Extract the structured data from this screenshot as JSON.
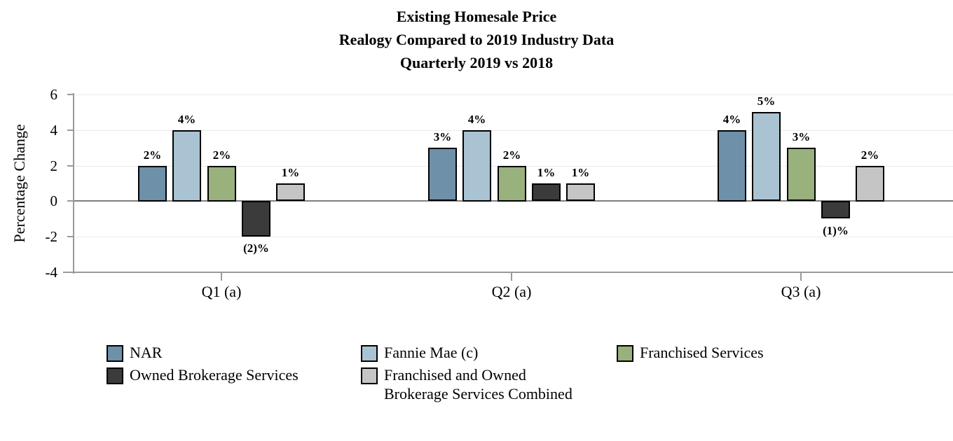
{
  "chart_data": {
    "type": "bar",
    "title_lines": [
      "Existing Homesale Price",
      "Realogy Compared to 2019 Industry Data",
      "Quarterly 2019 vs 2018"
    ],
    "ylabel": "Percentage Change",
    "xlabel": "",
    "categories": [
      "Q1 (a)",
      "Q2 (a)",
      "Q3 (a)"
    ],
    "y_ticks": [
      6,
      4,
      2,
      0,
      -2,
      -4
    ],
    "ylim": [
      -4,
      6
    ],
    "grid": "horizontal",
    "legend_position": "bottom",
    "series": [
      {
        "name": "NAR",
        "color": "#6E90A9",
        "values": [
          2,
          3,
          4
        ],
        "labels": [
          "2%",
          "3%",
          "4%"
        ]
      },
      {
        "name": "Fannie Mae (c)",
        "color": "#AAC3D3",
        "values": [
          4,
          4,
          5
        ],
        "labels": [
          "4%",
          "4%",
          "5%"
        ]
      },
      {
        "name": "Franchised Services",
        "color": "#99B17D",
        "values": [
          2,
          2,
          3
        ],
        "labels": [
          "2%",
          "2%",
          "3%"
        ]
      },
      {
        "name": "Owned Brokerage Services",
        "color": "#3B3B3B",
        "values": [
          -2,
          1,
          -1
        ],
        "labels": [
          "(2)%",
          "1%",
          "(1)%"
        ]
      },
      {
        "name": "Franchised and Owned Brokerage Services Combined",
        "color": "#C5C5C5",
        "values": [
          1,
          1,
          2
        ],
        "labels": [
          "1%",
          "1%",
          "2%"
        ]
      }
    ],
    "legend_columns": [
      [
        {
          "series_index": 0,
          "lines": [
            "NAR"
          ]
        },
        {
          "series_index": 3,
          "lines": [
            "Owned Brokerage Services"
          ]
        }
      ],
      [
        {
          "series_index": 1,
          "lines": [
            "Fannie Mae (c)"
          ]
        },
        {
          "series_index": 4,
          "lines": [
            "Franchised and Owned",
            "Brokerage Services Combined"
          ]
        }
      ],
      [
        {
          "series_index": 2,
          "lines": [
            "Franchised Services"
          ]
        }
      ]
    ]
  },
  "colors": {
    "axis": "#9A9A9A",
    "zero_line": "#7F7F7F",
    "gridline": "#EAEAEA",
    "bar_border": "#000000",
    "text": "#000000",
    "background": "#FFFFFF"
  }
}
